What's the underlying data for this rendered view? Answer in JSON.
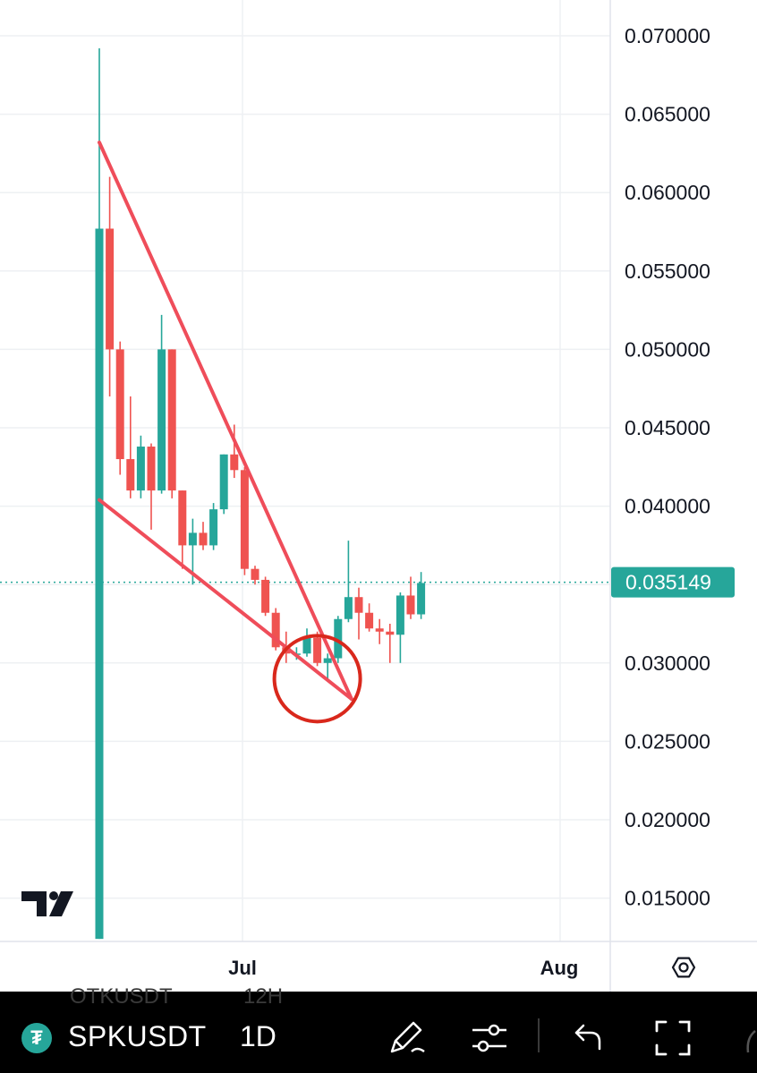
{
  "chart_data": {
    "type": "candlestick",
    "symbol": "SPKUSDT",
    "interval": "1D",
    "price_axis": {
      "ticks": [
        "0.070000",
        "0.065000",
        "0.060000",
        "0.055000",
        "0.050000",
        "0.045000",
        "0.040000",
        "0.030000",
        "0.025000",
        "0.020000",
        "0.015000"
      ],
      "range": [
        0.0123,
        0.0724
      ]
    },
    "time_axis": {
      "ticks": [
        "Jul",
        "Aug"
      ]
    },
    "last_price": "0.035149",
    "last_price_value": 0.035149,
    "candles": [
      {
        "o": 0.0124,
        "h": 0.0692,
        "l": 0.0124,
        "c": 0.0577
      },
      {
        "o": 0.0577,
        "h": 0.061,
        "l": 0.047,
        "c": 0.05
      },
      {
        "o": 0.05,
        "h": 0.0505,
        "l": 0.042,
        "c": 0.043
      },
      {
        "o": 0.043,
        "h": 0.047,
        "l": 0.0405,
        "c": 0.041
      },
      {
        "o": 0.041,
        "h": 0.0445,
        "l": 0.0405,
        "c": 0.0438
      },
      {
        "o": 0.0438,
        "h": 0.044,
        "l": 0.0385,
        "c": 0.041
      },
      {
        "o": 0.041,
        "h": 0.0522,
        "l": 0.0408,
        "c": 0.05
      },
      {
        "o": 0.05,
        "h": 0.05,
        "l": 0.0405,
        "c": 0.041
      },
      {
        "o": 0.041,
        "h": 0.041,
        "l": 0.036,
        "c": 0.0375
      },
      {
        "o": 0.0375,
        "h": 0.0392,
        "l": 0.035,
        "c": 0.0383
      },
      {
        "o": 0.0383,
        "h": 0.039,
        "l": 0.0372,
        "c": 0.0375
      },
      {
        "o": 0.0375,
        "h": 0.0402,
        "l": 0.0372,
        "c": 0.0398
      },
      {
        "o": 0.0398,
        "h": 0.0433,
        "l": 0.0395,
        "c": 0.0433
      },
      {
        "o": 0.0433,
        "h": 0.0452,
        "l": 0.0418,
        "c": 0.0423
      },
      {
        "o": 0.0423,
        "h": 0.0425,
        "l": 0.0356,
        "c": 0.036
      },
      {
        "o": 0.036,
        "h": 0.0362,
        "l": 0.035,
        "c": 0.0353
      },
      {
        "o": 0.0353,
        "h": 0.0355,
        "l": 0.033,
        "c": 0.0332
      },
      {
        "o": 0.0332,
        "h": 0.0335,
        "l": 0.0308,
        "c": 0.031
      },
      {
        "o": 0.031,
        "h": 0.032,
        "l": 0.03,
        "c": 0.0306
      },
      {
        "o": 0.0306,
        "h": 0.031,
        "l": 0.0302,
        "c": 0.0306
      },
      {
        "o": 0.0306,
        "h": 0.0322,
        "l": 0.0304,
        "c": 0.0316
      },
      {
        "o": 0.0316,
        "h": 0.032,
        "l": 0.0298,
        "c": 0.03
      },
      {
        "o": 0.03,
        "h": 0.0306,
        "l": 0.029,
        "c": 0.0303
      },
      {
        "o": 0.0303,
        "h": 0.033,
        "l": 0.03,
        "c": 0.0328
      },
      {
        "o": 0.0328,
        "h": 0.0378,
        "l": 0.0326,
        "c": 0.0342
      },
      {
        "o": 0.0342,
        "h": 0.0348,
        "l": 0.0315,
        "c": 0.0332
      },
      {
        "o": 0.0332,
        "h": 0.0338,
        "l": 0.032,
        "c": 0.0322
      },
      {
        "o": 0.0322,
        "h": 0.0328,
        "l": 0.0312,
        "c": 0.032
      },
      {
        "o": 0.032,
        "h": 0.0325,
        "l": 0.03,
        "c": 0.0318
      },
      {
        "o": 0.0318,
        "h": 0.0345,
        "l": 0.03,
        "c": 0.0343
      },
      {
        "o": 0.0343,
        "h": 0.0355,
        "l": 0.0328,
        "c": 0.0331
      },
      {
        "o": 0.0331,
        "h": 0.0358,
        "l": 0.0328,
        "c": 0.0351
      }
    ],
    "trendlines": [
      {
        "name": "upper-trendline",
        "x0": 0,
        "y0": 0.0632,
        "x1": 24.3,
        "y1": 0.0277,
        "color": "#ef4d5a"
      },
      {
        "name": "lower-trendline",
        "x0": 0,
        "y0": 0.0404,
        "x1": 24.3,
        "y1": 0.0277,
        "color": "#ef4d5a"
      }
    ],
    "annotation_circle": {
      "x": 21,
      "y": 0.029,
      "color": "#d9281c"
    },
    "grid": true,
    "colors": {
      "up": "#26a69a",
      "down": "#ef5350",
      "last_price_badge": "#26a69a",
      "grid": "#eef0f3"
    }
  },
  "ui": {
    "settings_icon": "gear-icon",
    "logo": "tradingview-logo",
    "toolbar": {
      "symbol": "SPKUSDT",
      "interval": "1D",
      "icons": [
        "tether-icon",
        "pencil-icon",
        "sliders-icon",
        "undo-icon",
        "fullscreen-icon"
      ],
      "ghost_symbol": "OTKUSDT",
      "ghost_interval": "12H"
    }
  }
}
